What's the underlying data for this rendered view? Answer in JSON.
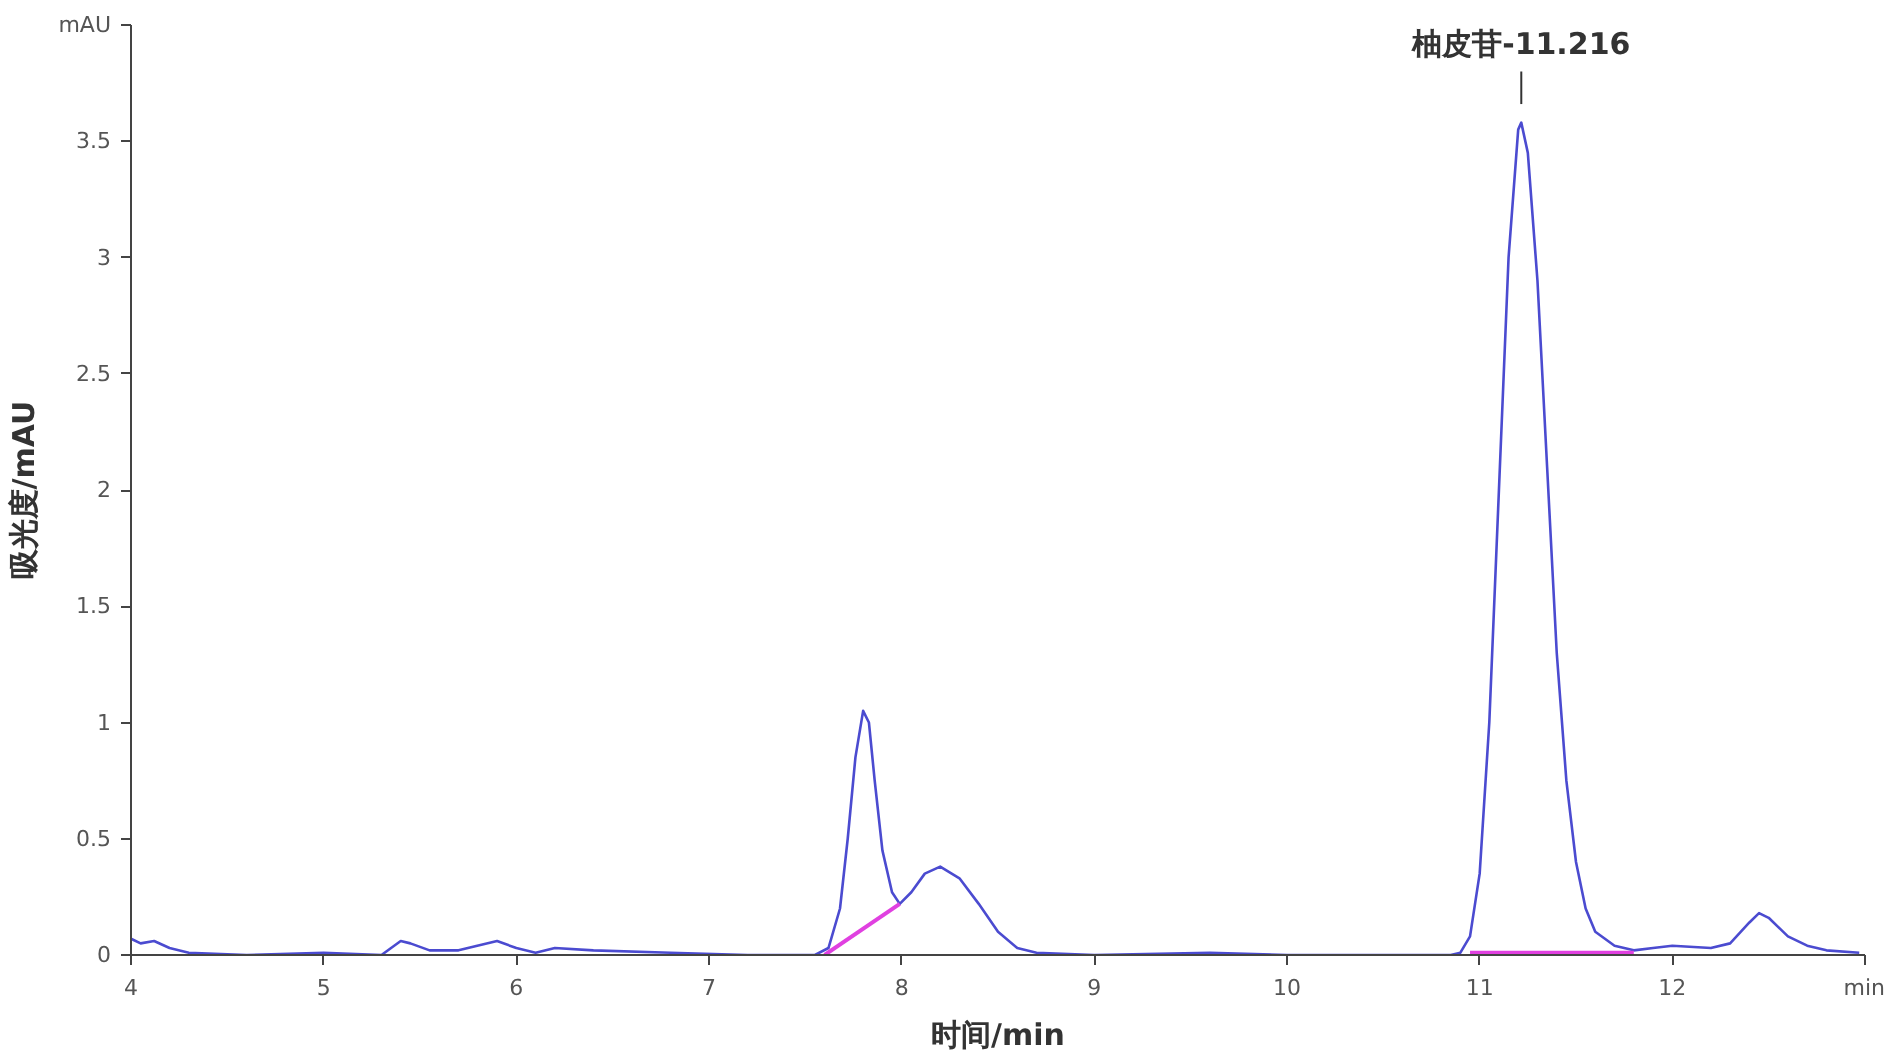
{
  "chart_data": {
    "type": "line",
    "xlabel": "时间/min",
    "ylabel": "吸光度/mAU",
    "xlim": [
      4,
      13
    ],
    "ylim": [
      0,
      4
    ],
    "xticks": [
      4,
      5,
      6,
      7,
      8,
      9,
      10,
      11,
      12,
      {
        "value": 13,
        "label": "min"
      }
    ],
    "yticks": [
      0,
      0.5,
      1,
      1.5,
      2,
      2.5,
      3,
      3.5,
      {
        "value": 4,
        "label": "mAU"
      }
    ],
    "grid": false,
    "marker": "none",
    "line_style": "solid",
    "annotations": [
      {
        "text": "柚皮苷-11.216",
        "x": 11.216,
        "y": 3.58
      }
    ],
    "series": [
      {
        "color": "#4b4bd0",
        "x": [
          4.0,
          4.05,
          4.12,
          4.2,
          4.3,
          4.6,
          5.0,
          5.3,
          5.35,
          5.4,
          5.45,
          5.55,
          5.7,
          5.9,
          6.0,
          6.1,
          6.2,
          6.4,
          6.8,
          7.2,
          7.55,
          7.62,
          7.68,
          7.72,
          7.76,
          7.8,
          7.83,
          7.86,
          7.9,
          7.95,
          7.99,
          8.05,
          8.12,
          8.2,
          8.3,
          8.4,
          8.5,
          8.6,
          8.7,
          9.0,
          9.6,
          10.0,
          10.5,
          10.85,
          10.9,
          10.95,
          11.0,
          11.05,
          11.1,
          11.15,
          11.2,
          11.216,
          11.25,
          11.3,
          11.35,
          11.4,
          11.45,
          11.5,
          11.55,
          11.6,
          11.7,
          11.8,
          11.9,
          12.0,
          12.2,
          12.3,
          12.4,
          12.45,
          12.5,
          12.6,
          12.7,
          12.8,
          12.97
        ],
        "values": [
          0.07,
          0.05,
          0.06,
          0.03,
          0.01,
          0.0,
          0.01,
          0.0,
          0.03,
          0.06,
          0.05,
          0.02,
          0.02,
          0.06,
          0.03,
          0.01,
          0.03,
          0.02,
          0.01,
          0.0,
          0.0,
          0.03,
          0.2,
          0.5,
          0.85,
          1.05,
          1.0,
          0.75,
          0.45,
          0.27,
          0.22,
          0.27,
          0.35,
          0.38,
          0.33,
          0.22,
          0.1,
          0.03,
          0.01,
          0.0,
          0.01,
          0.0,
          0.0,
          0.0,
          0.01,
          0.08,
          0.35,
          1.0,
          2.0,
          3.0,
          3.55,
          3.58,
          3.45,
          2.9,
          2.1,
          1.3,
          0.75,
          0.4,
          0.2,
          0.1,
          0.04,
          0.02,
          0.03,
          0.04,
          0.03,
          0.05,
          0.14,
          0.18,
          0.16,
          0.08,
          0.04,
          0.02,
          0.01
        ]
      },
      {
        "color": "#e040e0",
        "x": [
          7.6,
          7.99
        ],
        "values": [
          0.0,
          0.22
        ]
      },
      {
        "color": "#e040e0",
        "x": [
          10.95,
          11.8
        ],
        "values": [
          0.01,
          0.01
        ]
      }
    ]
  }
}
